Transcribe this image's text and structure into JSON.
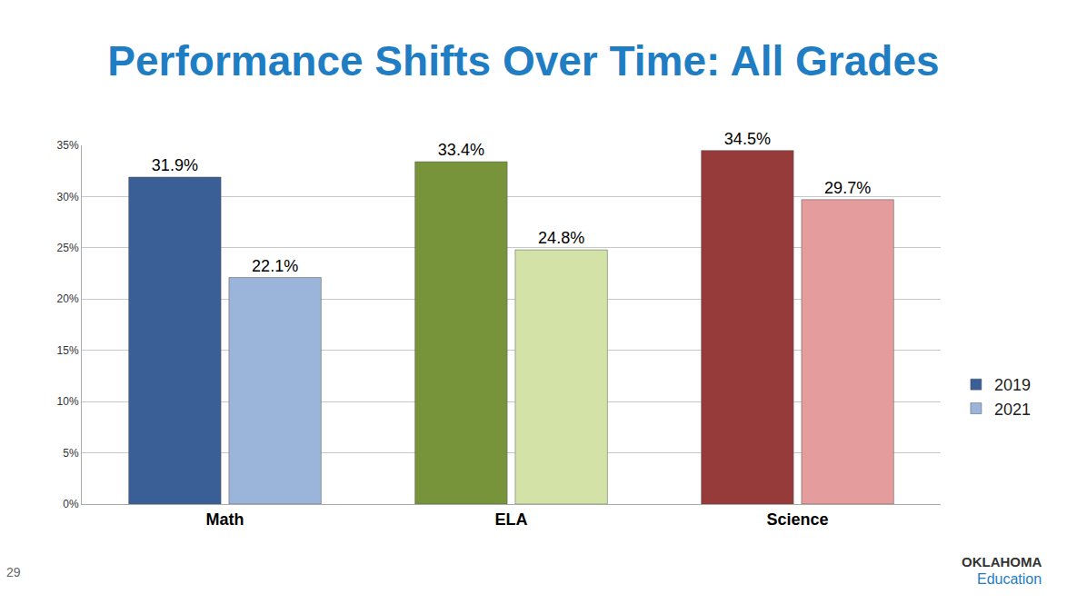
{
  "chart_data": {
    "type": "bar",
    "title": "Performance Shifts Over Time: All Grades",
    "categories": [
      "Math",
      "ELA",
      "Science"
    ],
    "series": [
      {
        "name": "2019",
        "values": [
          31.9,
          33.4,
          34.5
        ],
        "value_labels": [
          "31.9%",
          "33.4%",
          "34.5%"
        ],
        "colors": [
          "#3a5f96",
          "#77943a",
          "#963a3a"
        ]
      },
      {
        "name": "2021",
        "values": [
          22.1,
          24.8,
          29.7
        ],
        "value_labels": [
          "22.1%",
          "24.8%",
          "29.7%"
        ],
        "colors": [
          "#9bb4d9",
          "#d3e3a8",
          "#e49c9c"
        ]
      }
    ],
    "ylim": [
      0,
      35
    ],
    "yticks": [
      {
        "value": 0,
        "label": "0%"
      },
      {
        "value": 5,
        "label": "5%"
      },
      {
        "value": 10,
        "label": "10%"
      },
      {
        "value": 15,
        "label": "15%"
      },
      {
        "value": 20,
        "label": "20%"
      },
      {
        "value": 25,
        "label": "25%"
      },
      {
        "value": 30,
        "label": "30%"
      },
      {
        "value": 35,
        "label": "35%"
      }
    ],
    "grid": true,
    "data_labels": true,
    "legend": "right"
  },
  "footer": {
    "page_number": "29",
    "logo": [
      "OKLAHOMA",
      "Education"
    ]
  }
}
